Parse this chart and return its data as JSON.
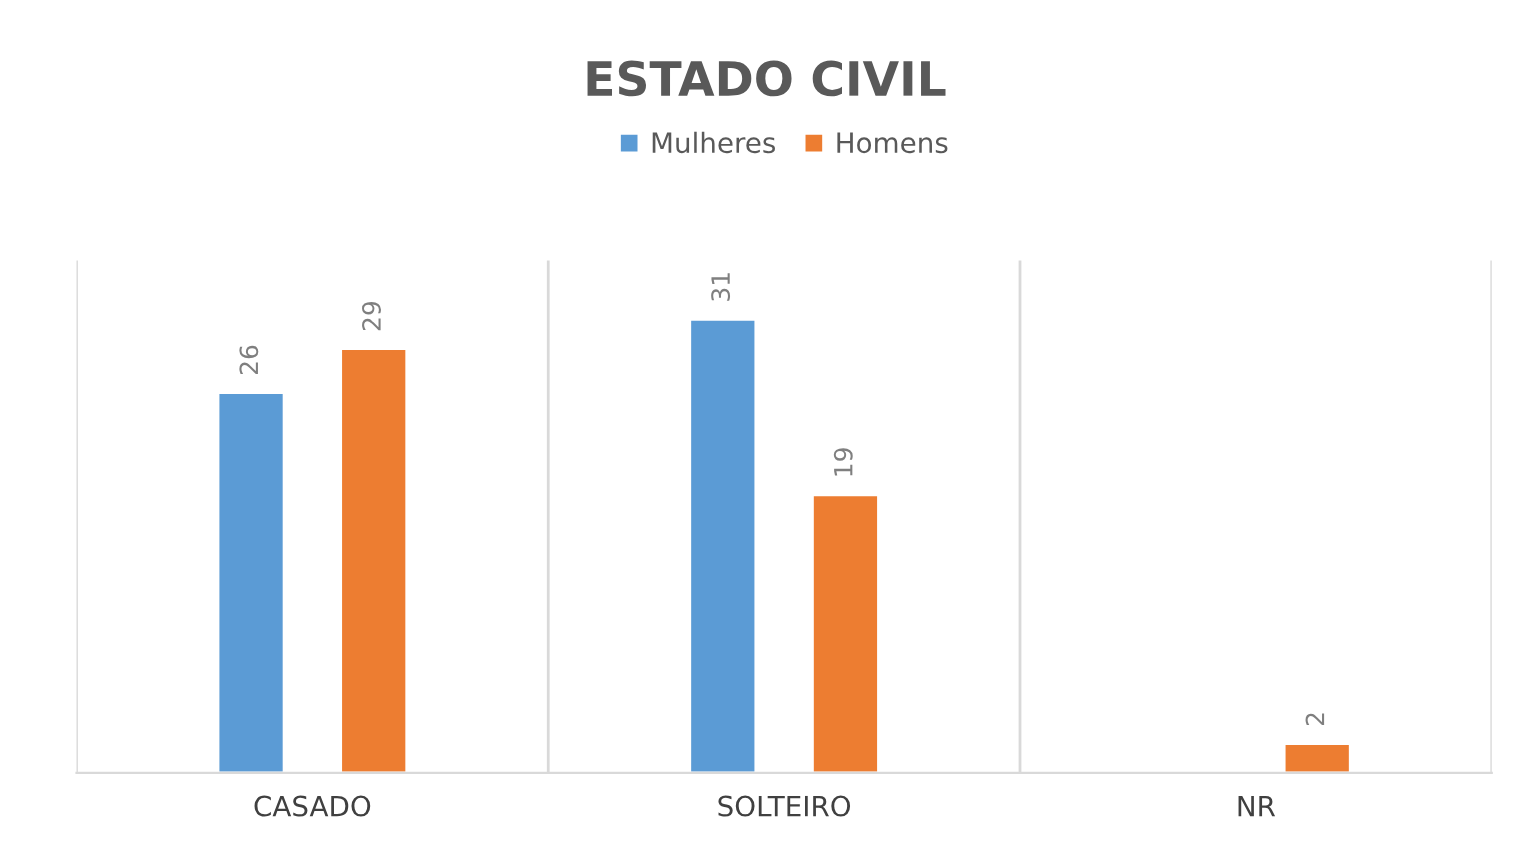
{
  "chart_data": {
    "type": "bar",
    "title": "ESTADO CIVIL",
    "categories": [
      "CASADO",
      "SOLTEIRO",
      "NR"
    ],
    "series": [
      {
        "name": "Mulheres",
        "color": "#5b9bd5",
        "values": [
          26,
          31,
          null
        ]
      },
      {
        "name": "Homens",
        "color": "#ed7d31",
        "values": [
          29,
          19,
          2
        ]
      }
    ],
    "data_labels": true,
    "grid": "x",
    "legend": "top"
  }
}
